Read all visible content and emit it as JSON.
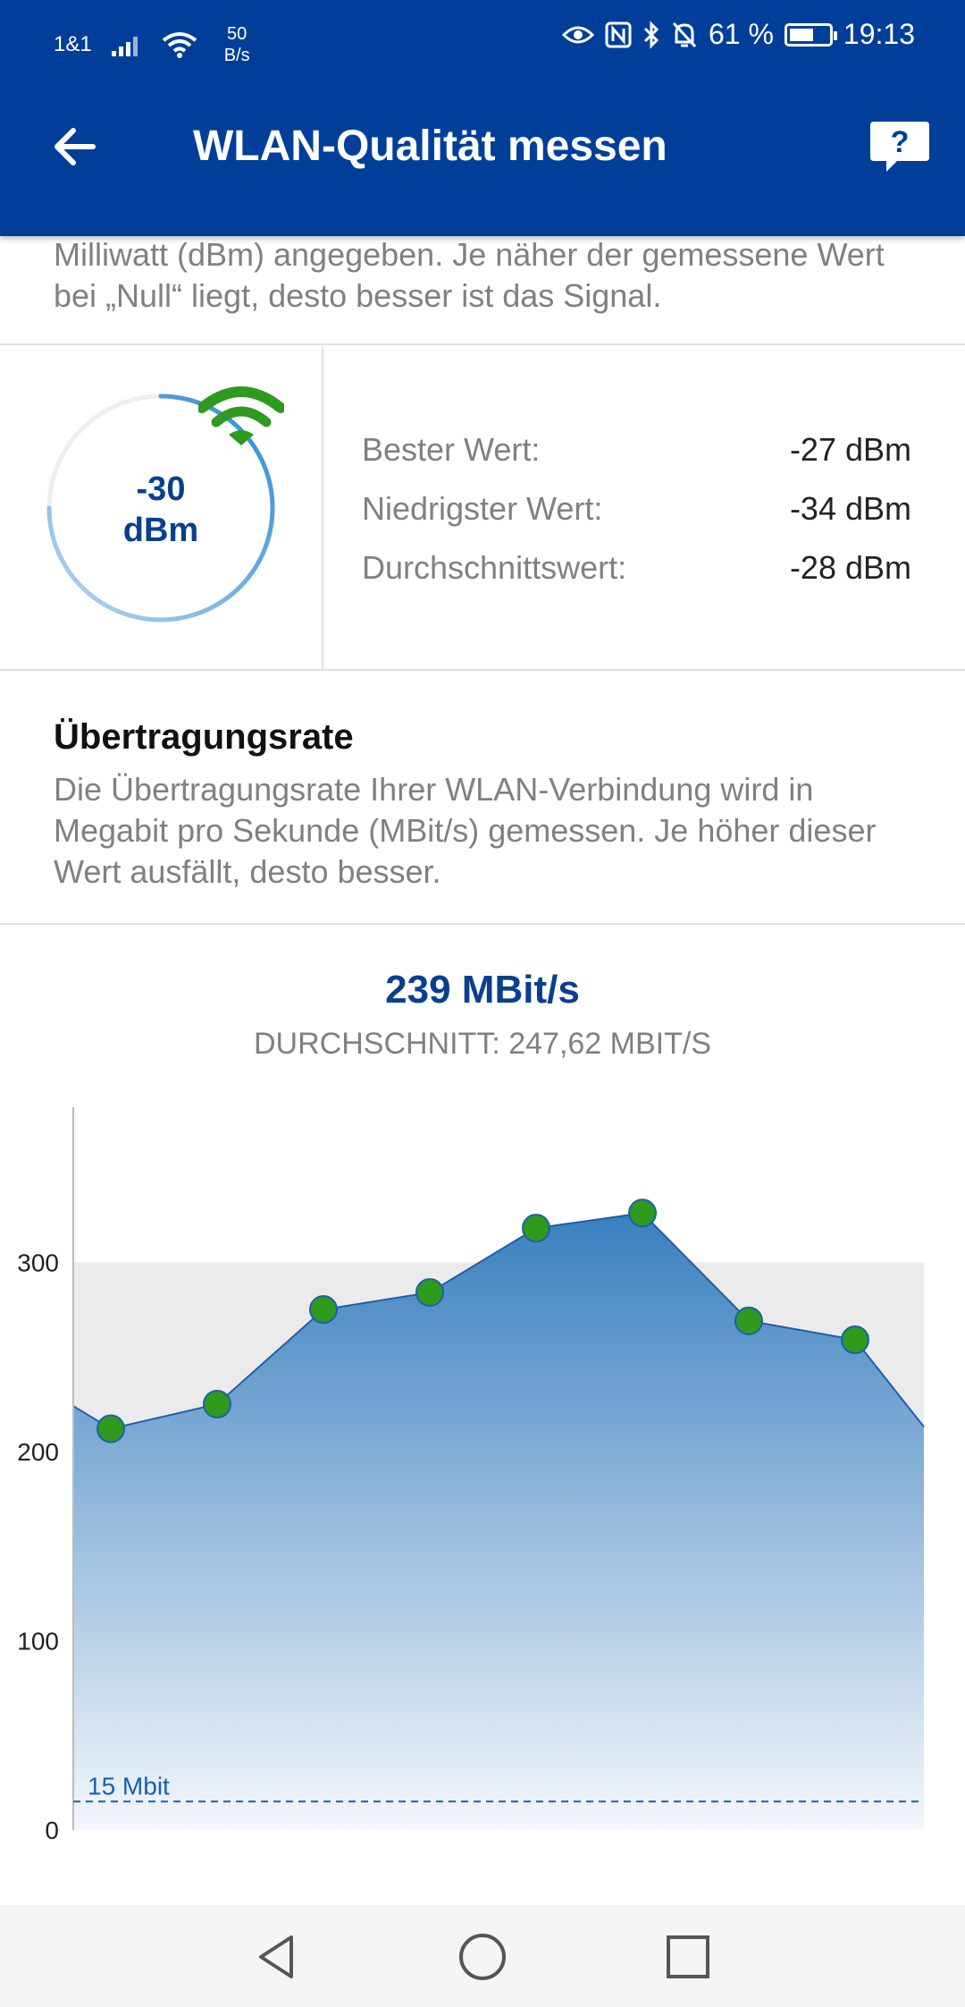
{
  "status": {
    "carrier": "1&1",
    "net_speed_value": "50",
    "net_speed_unit": "B/s",
    "battery": "61 %",
    "battery_level": 0.61,
    "time": "19:13"
  },
  "header": {
    "title": "WLAN-Qualität messen",
    "back_icon": "arrow-left-icon",
    "help_icon": "help-bubble-icon"
  },
  "intro_text": "Milliwatt (dBm) angegeben. Je näher der gemessene Wert bei „Null“ liegt, desto besser ist das Signal.",
  "signal": {
    "value": "-30",
    "unit": "dBm",
    "gauge_level": 0.75,
    "stats": [
      {
        "label": "Bester Wert:",
        "value": "-27 dBm"
      },
      {
        "label": "Niedrigster Wert:",
        "value": "-34 dBm"
      },
      {
        "label": "Durchschnittswert:",
        "value": "-28 dBm"
      }
    ]
  },
  "rate": {
    "title": "Übertragungsrate",
    "text": "Die Übertragungsrate Ihrer WLAN-Verbindung wird in Megabit pro Sekunde (MBit/s) gemessen. Je höher dieser Wert ausfällt, desto besser.",
    "current": "239 MBit/s",
    "average": "DURCHSCHNITT: 247,62 MBIT/S"
  },
  "chart_data": {
    "type": "area",
    "y_ticks": [
      0,
      100,
      200,
      300
    ],
    "ylim": [
      0,
      380
    ],
    "values": [
      224,
      212,
      225,
      275,
      284,
      318,
      326,
      269,
      259,
      213
    ],
    "markers": [
      1,
      2,
      3,
      4,
      5,
      6,
      7,
      8
    ],
    "threshold": {
      "value": 15,
      "label": "15 Mbit"
    },
    "band": [
      0,
      300
    ],
    "colors": {
      "area_top": "#3a7fbf",
      "area_bottom": "#f4f7fb",
      "marker": "#2e9a1e",
      "line": "#1f5fa8",
      "band": "#ebebeb"
    }
  },
  "nav": {
    "back_icon": "nav-back-icon",
    "home_icon": "nav-home-icon",
    "recents_icon": "nav-recents-icon"
  }
}
